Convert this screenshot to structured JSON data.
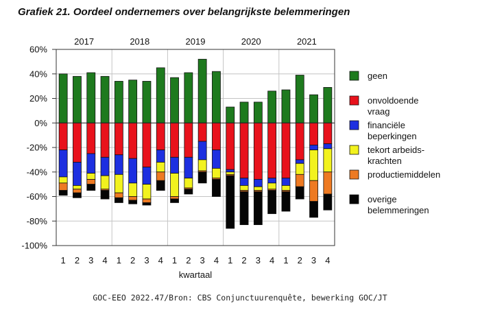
{
  "title": "Grafiek 21. Oordeel ondernemers over belangrijkste belemmeringen",
  "source": "GOC-EEO 2022.47/Bron: CBS Conjunctuurenquête, bewerking GOC/JT",
  "chart_data": {
    "type": "bar",
    "stacked": true,
    "ylim": [
      -100,
      60
    ],
    "yticks": [
      -100,
      -80,
      -60,
      -40,
      -20,
      0,
      20,
      40,
      60
    ],
    "ytick_labels": [
      "-100%",
      "-80%",
      "-60%",
      "-40%",
      "-20%",
      "0%",
      "20%",
      "40%",
      "60%"
    ],
    "xlabel": "kwartaal",
    "years": [
      "2017",
      "2018",
      "2019",
      "2020",
      "2021"
    ],
    "categories": [
      "1",
      "2",
      "3",
      "4",
      "1",
      "2",
      "3",
      "4",
      "1",
      "2",
      "3",
      "4",
      "1",
      "2",
      "3",
      "4",
      "1",
      "2",
      "3",
      "4"
    ],
    "grid": true,
    "legend_position": "right",
    "series": [
      {
        "name": "geen",
        "color": "#1e7a1e",
        "values": [
          40,
          38,
          41,
          38,
          34,
          35,
          34,
          45,
          37,
          41,
          52,
          42,
          13,
          17,
          17,
          26,
          27,
          39,
          23,
          29
        ]
      },
      {
        "name": "onvoldoende vraag",
        "color": "#e8121c",
        "values": [
          -22,
          -32,
          -25,
          -28,
          -26,
          -29,
          -36,
          -22,
          -28,
          -28,
          -15,
          -22,
          -38,
          -45,
          -46,
          -45,
          -45,
          -30,
          -18,
          -17
        ]
      },
      {
        "name": "financiële beperkingen",
        "color": "#1d2fe0",
        "values": [
          -22,
          -19,
          -16,
          -15,
          -16,
          -20,
          -14,
          -10,
          -13,
          -17,
          -15,
          -15,
          -2,
          -6,
          -6,
          -4,
          -6,
          -3,
          -4,
          -4
        ]
      },
      {
        "name": "tekort arbeids-krachten",
        "color": "#f2f21e",
        "values": [
          -5,
          -3,
          -5,
          -11,
          -15,
          -11,
          -12,
          -8,
          -19,
          -8,
          -9,
          -8,
          -2,
          -4,
          -3,
          -5,
          -4,
          -9,
          -25,
          -19
        ]
      },
      {
        "name": "productiemiddelen",
        "color": "#ee7a22",
        "values": [
          -6,
          -3,
          -4,
          -1,
          -4,
          -3,
          -3,
          -7,
          -2,
          -1,
          -1,
          -1,
          -1,
          -1,
          -1,
          -1,
          -1,
          -10,
          -17,
          -18
        ]
      },
      {
        "name": "overige belemmeringen",
        "color": "#050505",
        "values": [
          -4,
          -4,
          -5,
          -7,
          -4,
          -3,
          -2,
          -8,
          -3,
          -4,
          -9,
          -14,
          -43,
          -27,
          -27,
          -19,
          -16,
          -10,
          -13,
          -13
        ]
      }
    ]
  }
}
